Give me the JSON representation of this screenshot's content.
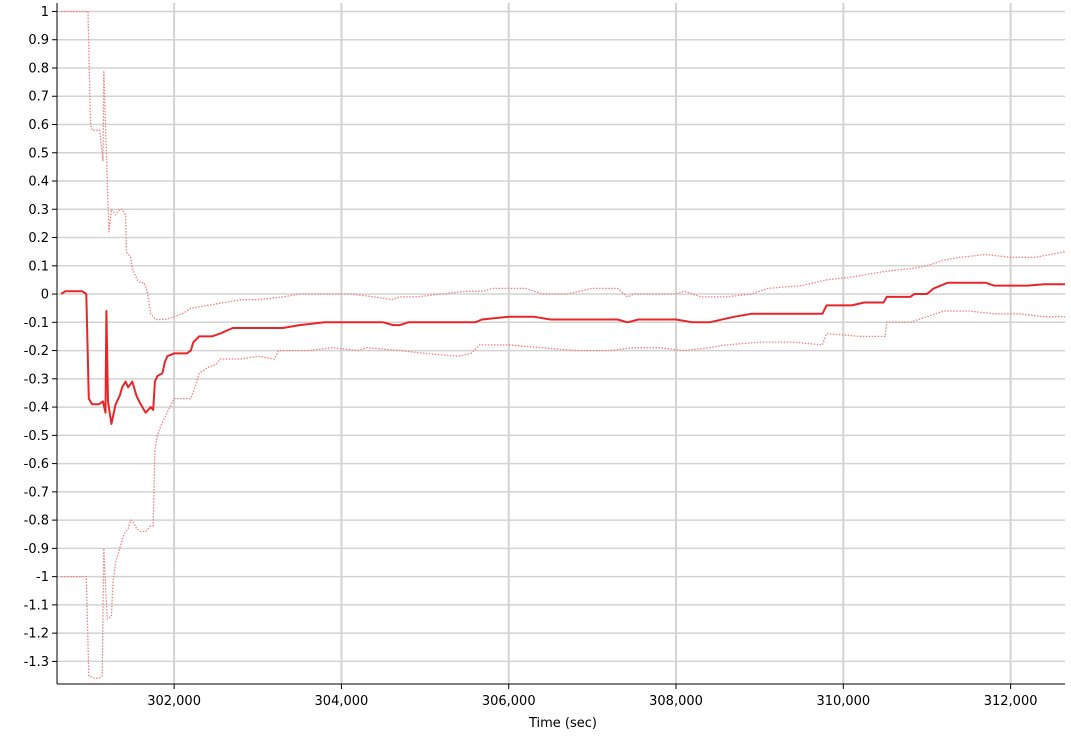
{
  "chart_data": {
    "type": "line",
    "title": "",
    "xlabel": "Time (sec)",
    "ylabel": "",
    "xlim": [
      300600,
      312650
    ],
    "ylim": [
      -1.38,
      1.03
    ],
    "x_ticks": [
      302000,
      304000,
      306000,
      308000,
      310000,
      312000
    ],
    "x_tick_labels": [
      "302,000",
      "304,000",
      "306,000",
      "308,000",
      "310,000",
      "312,000"
    ],
    "y_ticks": [
      1,
      0.9,
      0.8,
      0.7,
      0.6,
      0.5,
      0.4,
      0.3,
      0.2,
      0.1,
      0,
      -0.1,
      -0.2,
      -0.3,
      -0.4,
      -0.5,
      -0.6,
      -0.7,
      -0.8,
      -0.9,
      -1,
      -1.1,
      -1.2,
      -1.3
    ],
    "y_tick_labels": [
      "1",
      "0.9",
      "0.8",
      "0.7",
      "0.6",
      "0.5",
      "0.4",
      "0.3",
      "0.2",
      "0.1",
      "0",
      "-0.1",
      "-0.2",
      "-0.3",
      "-0.4",
      "-0.5",
      "-0.6",
      "-0.7",
      "-0.8",
      "-0.9",
      "-1",
      "-1.1",
      "-1.2",
      "-1.3"
    ],
    "grid": true,
    "legend": "none",
    "colors": {
      "estimate": "#e8262a",
      "upper_bound": "#f08080",
      "lower_bound": "#f08080",
      "grid": "#d3d3d3",
      "axis": "#000000"
    },
    "series": [
      {
        "style": "solid",
        "points": [
          [
            300650,
            0.0
          ],
          [
            300700,
            0.01
          ],
          [
            300800,
            0.01
          ],
          [
            300900,
            0.01
          ],
          [
            300950,
            0.0
          ],
          [
            300980,
            -0.37
          ],
          [
            301020,
            -0.39
          ],
          [
            301100,
            -0.39
          ],
          [
            301150,
            -0.38
          ],
          [
            301180,
            -0.42
          ],
          [
            301190,
            -0.06
          ],
          [
            301210,
            -0.38
          ],
          [
            301250,
            -0.46
          ],
          [
            301300,
            -0.39
          ],
          [
            301350,
            -0.36
          ],
          [
            301380,
            -0.33
          ],
          [
            301420,
            -0.31
          ],
          [
            301450,
            -0.33
          ],
          [
            301500,
            -0.31
          ],
          [
            301550,
            -0.36
          ],
          [
            301600,
            -0.39
          ],
          [
            301660,
            -0.42
          ],
          [
            301720,
            -0.4
          ],
          [
            301750,
            -0.41
          ],
          [
            301770,
            -0.31
          ],
          [
            301800,
            -0.29
          ],
          [
            301860,
            -0.28
          ],
          [
            301890,
            -0.24
          ],
          [
            301920,
            -0.22
          ],
          [
            302000,
            -0.21
          ],
          [
            302150,
            -0.21
          ],
          [
            302200,
            -0.2
          ],
          [
            302230,
            -0.17
          ],
          [
            302300,
            -0.15
          ],
          [
            302450,
            -0.15
          ],
          [
            302550,
            -0.14
          ],
          [
            302700,
            -0.12
          ],
          [
            303000,
            -0.12
          ],
          [
            303300,
            -0.12
          ],
          [
            303500,
            -0.11
          ],
          [
            303800,
            -0.1
          ],
          [
            304200,
            -0.1
          ],
          [
            304500,
            -0.1
          ],
          [
            304620,
            -0.11
          ],
          [
            304700,
            -0.11
          ],
          [
            304800,
            -0.1
          ],
          [
            305600,
            -0.1
          ],
          [
            305680,
            -0.09
          ],
          [
            306000,
            -0.08
          ],
          [
            306300,
            -0.08
          ],
          [
            306500,
            -0.09
          ],
          [
            307300,
            -0.09
          ],
          [
            307420,
            -0.1
          ],
          [
            307550,
            -0.09
          ],
          [
            308000,
            -0.09
          ],
          [
            308200,
            -0.1
          ],
          [
            308400,
            -0.1
          ],
          [
            308700,
            -0.08
          ],
          [
            308900,
            -0.07
          ],
          [
            309100,
            -0.07
          ],
          [
            309500,
            -0.07
          ],
          [
            309750,
            -0.07
          ],
          [
            309800,
            -0.04
          ],
          [
            310100,
            -0.04
          ],
          [
            310250,
            -0.03
          ],
          [
            310480,
            -0.03
          ],
          [
            310520,
            -0.01
          ],
          [
            310800,
            -0.01
          ],
          [
            310850,
            0.0
          ],
          [
            311000,
            0.0
          ],
          [
            311080,
            0.02
          ],
          [
            311250,
            0.04
          ],
          [
            311700,
            0.04
          ],
          [
            311800,
            0.03
          ],
          [
            312200,
            0.03
          ],
          [
            312400,
            0.035
          ],
          [
            312650,
            0.035
          ]
        ]
      },
      {
        "style": "dotted",
        "points": [
          [
            300650,
            1.0
          ],
          [
            300720,
            1.0
          ],
          [
            300800,
            1.0
          ],
          [
            300900,
            1.0
          ],
          [
            300970,
            1.0
          ],
          [
            301000,
            0.6
          ],
          [
            301020,
            0.58
          ],
          [
            301080,
            0.58
          ],
          [
            301110,
            0.58
          ],
          [
            301150,
            0.47
          ],
          [
            301160,
            0.79
          ],
          [
            301190,
            0.5
          ],
          [
            301220,
            0.22
          ],
          [
            301250,
            0.3
          ],
          [
            301300,
            0.28
          ],
          [
            301350,
            0.3
          ],
          [
            301380,
            0.3
          ],
          [
            301420,
            0.28
          ],
          [
            301430,
            0.15
          ],
          [
            301480,
            0.13
          ],
          [
            301500,
            0.09
          ],
          [
            301560,
            0.05
          ],
          [
            301600,
            0.04
          ],
          [
            301640,
            0.04
          ],
          [
            301680,
            0.01
          ],
          [
            301720,
            -0.07
          ],
          [
            301780,
            -0.09
          ],
          [
            301850,
            -0.09
          ],
          [
            301900,
            -0.09
          ],
          [
            302000,
            -0.08
          ],
          [
            302100,
            -0.07
          ],
          [
            302200,
            -0.05
          ],
          [
            302400,
            -0.04
          ],
          [
            302600,
            -0.03
          ],
          [
            302800,
            -0.02
          ],
          [
            303000,
            -0.02
          ],
          [
            303300,
            -0.01
          ],
          [
            303500,
            0.0
          ],
          [
            303800,
            0.0
          ],
          [
            304100,
            0.0
          ],
          [
            304400,
            -0.01
          ],
          [
            304600,
            -0.02
          ],
          [
            304700,
            -0.01
          ],
          [
            304900,
            -0.01
          ],
          [
            305200,
            0.0
          ],
          [
            305500,
            0.01
          ],
          [
            305700,
            0.01
          ],
          [
            305800,
            0.02
          ],
          [
            306200,
            0.02
          ],
          [
            306400,
            0.0
          ],
          [
            306700,
            0.0
          ],
          [
            307000,
            0.02
          ],
          [
            307300,
            0.02
          ],
          [
            307420,
            -0.01
          ],
          [
            307500,
            0.0
          ],
          [
            308000,
            0.0
          ],
          [
            308100,
            0.01
          ],
          [
            308300,
            -0.01
          ],
          [
            308600,
            -0.01
          ],
          [
            308900,
            0.0
          ],
          [
            309100,
            0.02
          ],
          [
            309500,
            0.03
          ],
          [
            309800,
            0.05
          ],
          [
            310100,
            0.06
          ],
          [
            310500,
            0.08
          ],
          [
            310800,
            0.09
          ],
          [
            311000,
            0.1
          ],
          [
            311200,
            0.12
          ],
          [
            311400,
            0.13
          ],
          [
            311700,
            0.14
          ],
          [
            312000,
            0.13
          ],
          [
            312300,
            0.13
          ],
          [
            312650,
            0.15
          ]
        ]
      },
      {
        "style": "dotted",
        "points": [
          [
            300650,
            -1.0
          ],
          [
            300800,
            -1.0
          ],
          [
            300900,
            -1.0
          ],
          [
            300950,
            -1.0
          ],
          [
            300980,
            -1.35
          ],
          [
            301050,
            -1.36
          ],
          [
            301100,
            -1.36
          ],
          [
            301140,
            -1.35
          ],
          [
            301160,
            -0.9
          ],
          [
            301200,
            -1.15
          ],
          [
            301250,
            -1.14
          ],
          [
            301270,
            -1.02
          ],
          [
            301300,
            -0.95
          ],
          [
            301350,
            -0.9
          ],
          [
            301400,
            -0.85
          ],
          [
            301450,
            -0.83
          ],
          [
            301480,
            -0.8
          ],
          [
            301520,
            -0.81
          ],
          [
            301550,
            -0.83
          ],
          [
            301600,
            -0.84
          ],
          [
            301660,
            -0.84
          ],
          [
            301720,
            -0.82
          ],
          [
            301750,
            -0.82
          ],
          [
            301770,
            -0.55
          ],
          [
            301800,
            -0.5
          ],
          [
            301850,
            -0.46
          ],
          [
            301900,
            -0.43
          ],
          [
            302000,
            -0.37
          ],
          [
            302200,
            -0.37
          ],
          [
            302250,
            -0.33
          ],
          [
            302300,
            -0.28
          ],
          [
            302400,
            -0.26
          ],
          [
            302500,
            -0.25
          ],
          [
            302550,
            -0.23
          ],
          [
            302800,
            -0.23
          ],
          [
            303000,
            -0.22
          ],
          [
            303200,
            -0.23
          ],
          [
            303250,
            -0.2
          ],
          [
            303600,
            -0.2
          ],
          [
            303900,
            -0.19
          ],
          [
            304200,
            -0.2
          ],
          [
            304300,
            -0.19
          ],
          [
            304700,
            -0.2
          ],
          [
            305000,
            -0.21
          ],
          [
            305400,
            -0.22
          ],
          [
            305550,
            -0.21
          ],
          [
            305650,
            -0.18
          ],
          [
            306000,
            -0.18
          ],
          [
            306400,
            -0.19
          ],
          [
            306800,
            -0.2
          ],
          [
            307200,
            -0.2
          ],
          [
            307500,
            -0.19
          ],
          [
            307800,
            -0.19
          ],
          [
            308100,
            -0.2
          ],
          [
            308400,
            -0.19
          ],
          [
            308600,
            -0.18
          ],
          [
            309000,
            -0.17
          ],
          [
            309400,
            -0.17
          ],
          [
            309750,
            -0.18
          ],
          [
            309800,
            -0.14
          ],
          [
            310200,
            -0.15
          ],
          [
            310500,
            -0.15
          ],
          [
            310520,
            -0.1
          ],
          [
            310800,
            -0.1
          ],
          [
            311000,
            -0.08
          ],
          [
            311200,
            -0.06
          ],
          [
            311500,
            -0.06
          ],
          [
            311800,
            -0.07
          ],
          [
            312100,
            -0.07
          ],
          [
            312400,
            -0.08
          ],
          [
            312650,
            -0.08
          ]
        ]
      }
    ]
  }
}
